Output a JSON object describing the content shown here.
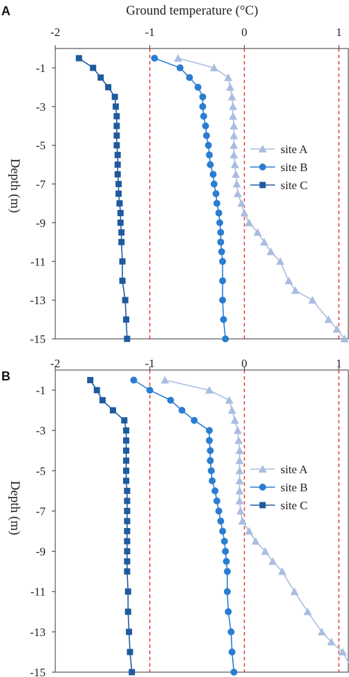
{
  "panels": [
    {
      "label": "A",
      "chart_data": {
        "type": "line",
        "title": "",
        "xlabel": "Ground temperature (°C)",
        "ylabel": "Depth (m)",
        "xlim": [
          -2,
          1.1
        ],
        "ylim": [
          -15,
          0
        ],
        "x_ticks": [
          "-2",
          "-1",
          "0",
          "1"
        ],
        "y_ticks": [
          "-1",
          "-3",
          "-5",
          "-7",
          "-9",
          "-11",
          "-13",
          "-15"
        ],
        "reference_lines_x": [
          -1,
          0,
          1
        ],
        "legend_position": "center-right",
        "series": [
          {
            "name": "site A",
            "marker": "triangle",
            "color": "#a9bde0",
            "points": [
              [
                -0.7,
                -0.5
              ],
              [
                -0.32,
                -1
              ],
              [
                -0.17,
                -1.5
              ],
              [
                -0.15,
                -2
              ],
              [
                -0.13,
                -2.5
              ],
              [
                -0.12,
                -3
              ],
              [
                -0.12,
                -3.5
              ],
              [
                -0.11,
                -4
              ],
              [
                -0.11,
                -4.5
              ],
              [
                -0.11,
                -5
              ],
              [
                -0.11,
                -5.5
              ],
              [
                -0.1,
                -6
              ],
              [
                -0.09,
                -6.5
              ],
              [
                -0.08,
                -7
              ],
              [
                -0.07,
                -7.5
              ],
              [
                -0.03,
                -8
              ],
              [
                0,
                -8.5
              ],
              [
                0.05,
                -9
              ],
              [
                0.14,
                -9.5
              ],
              [
                0.21,
                -10
              ],
              [
                0.28,
                -10.5
              ],
              [
                0.38,
                -11
              ],
              [
                0.47,
                -12
              ],
              [
                0.54,
                -12.5
              ],
              [
                0.72,
                -13
              ],
              [
                0.89,
                -14
              ],
              [
                0.98,
                -14.5
              ],
              [
                1.06,
                -15
              ]
            ]
          },
          {
            "name": "site B",
            "marker": "circle",
            "color": "#2a7dd1",
            "points": [
              [
                -0.95,
                -0.5
              ],
              [
                -0.68,
                -1
              ],
              [
                -0.58,
                -1.5
              ],
              [
                -0.49,
                -2
              ],
              [
                -0.44,
                -2.5
              ],
              [
                -0.44,
                -3
              ],
              [
                -0.43,
                -3.5
              ],
              [
                -0.41,
                -4
              ],
              [
                -0.4,
                -4.5
              ],
              [
                -0.38,
                -5
              ],
              [
                -0.37,
                -5.5
              ],
              [
                -0.36,
                -6
              ],
              [
                -0.33,
                -6.5
              ],
              [
                -0.32,
                -7
              ],
              [
                -0.3,
                -7.5
              ],
              [
                -0.29,
                -8
              ],
              [
                -0.27,
                -8.5
              ],
              [
                -0.26,
                -9
              ],
              [
                -0.25,
                -9.5
              ],
              [
                -0.25,
                -10
              ],
              [
                -0.24,
                -10.5
              ],
              [
                -0.23,
                -11
              ],
              [
                -0.23,
                -12
              ],
              [
                -0.23,
                -13
              ],
              [
                -0.22,
                -14
              ],
              [
                -0.2,
                -15
              ]
            ]
          },
          {
            "name": "site C",
            "marker": "square",
            "color": "#1e5b9e",
            "points": [
              [
                -1.75,
                -0.5
              ],
              [
                -1.6,
                -1
              ],
              [
                -1.52,
                -1.5
              ],
              [
                -1.44,
                -2
              ],
              [
                -1.37,
                -2.5
              ],
              [
                -1.36,
                -3
              ],
              [
                -1.35,
                -3.5
              ],
              [
                -1.35,
                -4
              ],
              [
                -1.35,
                -4.5
              ],
              [
                -1.35,
                -5
              ],
              [
                -1.34,
                -5.5
              ],
              [
                -1.34,
                -6
              ],
              [
                -1.34,
                -6.5
              ],
              [
                -1.33,
                -7
              ],
              [
                -1.33,
                -7.5
              ],
              [
                -1.32,
                -8
              ],
              [
                -1.31,
                -8.5
              ],
              [
                -1.31,
                -9
              ],
              [
                -1.3,
                -9.5
              ],
              [
                -1.3,
                -10
              ],
              [
                -1.29,
                -11
              ],
              [
                -1.29,
                -12
              ],
              [
                -1.26,
                -13
              ],
              [
                -1.25,
                -14
              ],
              [
                -1.24,
                -15
              ]
            ]
          }
        ]
      }
    },
    {
      "label": "B",
      "chart_data": {
        "type": "line",
        "title": "",
        "xlabel": "",
        "ylabel": "Depth (m)",
        "xlim": [
          -2,
          1.1
        ],
        "ylim": [
          -15,
          0
        ],
        "x_ticks": [
          "-2",
          "-1",
          "0",
          "1"
        ],
        "y_ticks": [
          "-1",
          "-3",
          "-5",
          "-7",
          "-9",
          "-11",
          "-13",
          "-15"
        ],
        "reference_lines_x": [
          -1,
          0,
          1
        ],
        "legend_position": "center-right",
        "series": [
          {
            "name": "site A",
            "marker": "triangle",
            "color": "#a9bde0",
            "points": [
              [
                -0.84,
                -0.5
              ],
              [
                -0.37,
                -1
              ],
              [
                -0.16,
                -1.5
              ],
              [
                -0.13,
                -2
              ],
              [
                -0.1,
                -2.5
              ],
              [
                -0.07,
                -3
              ],
              [
                -0.06,
                -3.5
              ],
              [
                -0.05,
                -4
              ],
              [
                -0.05,
                -4.5
              ],
              [
                -0.05,
                -5
              ],
              [
                -0.05,
                -5.5
              ],
              [
                -0.05,
                -6
              ],
              [
                -0.05,
                -6.5
              ],
              [
                -0.04,
                -7
              ],
              [
                -0.02,
                -7.5
              ],
              [
                0.05,
                -8
              ],
              [
                0.12,
                -8.5
              ],
              [
                0.22,
                -9
              ],
              [
                0.3,
                -9.5
              ],
              [
                0.4,
                -10
              ],
              [
                0.53,
                -11
              ],
              [
                0.67,
                -12
              ],
              [
                0.82,
                -13
              ],
              [
                0.92,
                -13.5
              ],
              [
                1.04,
                -14
              ],
              [
                1.16,
                -15
              ]
            ]
          },
          {
            "name": "site B",
            "marker": "circle",
            "color": "#2a7dd1",
            "points": [
              [
                -1.17,
                -0.5
              ],
              [
                -1.0,
                -1
              ],
              [
                -0.78,
                -1.5
              ],
              [
                -0.66,
                -2
              ],
              [
                -0.53,
                -2.5
              ],
              [
                -0.37,
                -3
              ],
              [
                -0.37,
                -3.5
              ],
              [
                -0.36,
                -4
              ],
              [
                -0.36,
                -4.5
              ],
              [
                -0.35,
                -5
              ],
              [
                -0.34,
                -5.5
              ],
              [
                -0.31,
                -6
              ],
              [
                -0.29,
                -6.5
              ],
              [
                -0.27,
                -7
              ],
              [
                -0.25,
                -7.5
              ],
              [
                -0.23,
                -8
              ],
              [
                -0.21,
                -8.5
              ],
              [
                -0.2,
                -9
              ],
              [
                -0.19,
                -9.5
              ],
              [
                -0.18,
                -10
              ],
              [
                -0.18,
                -11
              ],
              [
                -0.17,
                -12
              ],
              [
                -0.14,
                -13
              ],
              [
                -0.13,
                -14
              ],
              [
                -0.11,
                -15
              ]
            ]
          },
          {
            "name": "site C",
            "marker": "square",
            "color": "#1e5b9e",
            "points": [
              [
                -1.63,
                -0.5
              ],
              [
                -1.56,
                -1
              ],
              [
                -1.5,
                -1.5
              ],
              [
                -1.39,
                -2
              ],
              [
                -1.27,
                -2.5
              ],
              [
                -1.25,
                -3
              ],
              [
                -1.25,
                -3.5
              ],
              [
                -1.25,
                -4
              ],
              [
                -1.25,
                -4.5
              ],
              [
                -1.25,
                -5
              ],
              [
                -1.25,
                -5.5
              ],
              [
                -1.24,
                -6
              ],
              [
                -1.24,
                -6.5
              ],
              [
                -1.24,
                -7
              ],
              [
                -1.24,
                -7.5
              ],
              [
                -1.24,
                -8
              ],
              [
                -1.24,
                -8.5
              ],
              [
                -1.24,
                -9
              ],
              [
                -1.24,
                -9.5
              ],
              [
                -1.24,
                -10
              ],
              [
                -1.23,
                -11
              ],
              [
                -1.23,
                -12
              ],
              [
                -1.22,
                -13
              ],
              [
                -1.21,
                -14
              ],
              [
                -1.19,
                -15
              ]
            ]
          }
        ]
      }
    }
  ]
}
